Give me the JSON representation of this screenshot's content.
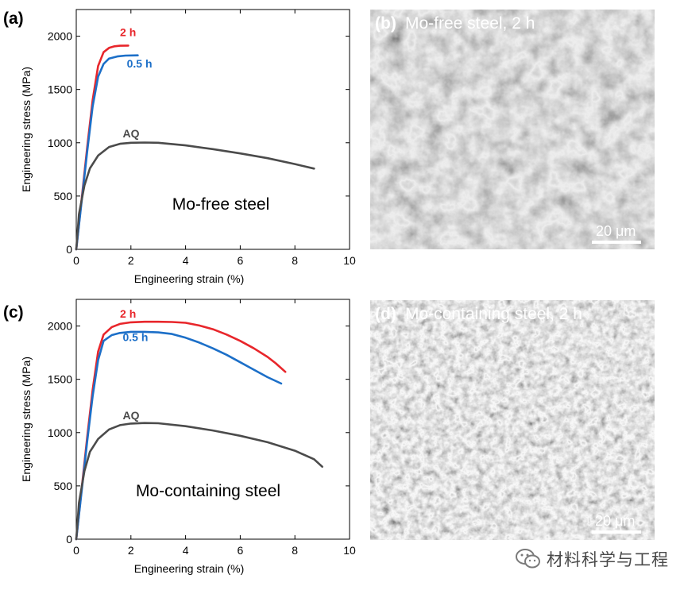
{
  "figure": {
    "panels": {
      "a": {
        "letter": "(a)"
      },
      "b": {
        "letter": "(b)",
        "caption": "Mo-free steel, 2 h",
        "scale_bar": "20 μm"
      },
      "c": {
        "letter": "(c)"
      },
      "d": {
        "letter": "(d)",
        "caption": "Mo-containing steel, 2 h",
        "scale_bar": "20 μm"
      }
    },
    "watermark": {
      "text": "材料科学与工程",
      "icon": "wechat-logo-icon"
    }
  },
  "colors": {
    "two_h": "#e8262b",
    "half_h": "#1c6fc8",
    "aq": "#4b4b4b",
    "sem_dark": "#3c3c3c"
  },
  "chart_data": [
    {
      "id": "a",
      "type": "line",
      "annotation": "Mo-free steel",
      "xlabel": "Engineering strain (%)",
      "ylabel": "Engineering stress (MPa)",
      "xlim": [
        0,
        10
      ],
      "ylim": [
        0,
        2250
      ],
      "xticks": [
        0,
        2,
        4,
        6,
        8,
        10
      ],
      "yticks": [
        0,
        500,
        1000,
        1500,
        2000
      ],
      "series": [
        {
          "name": "2 h",
          "color": "#e8262b",
          "x": [
            0,
            0.2,
            0.4,
            0.6,
            0.8,
            1.0,
            1.2,
            1.4,
            1.6,
            1.9
          ],
          "y": [
            0,
            480,
            960,
            1400,
            1720,
            1850,
            1890,
            1905,
            1910,
            1912
          ]
        },
        {
          "name": "0.5 h",
          "color": "#1c6fc8",
          "x": [
            0,
            0.2,
            0.4,
            0.6,
            0.8,
            1.0,
            1.2,
            1.5,
            1.8,
            2.25
          ],
          "y": [
            0,
            460,
            920,
            1340,
            1620,
            1740,
            1790,
            1810,
            1818,
            1820
          ]
        },
        {
          "name": "AQ",
          "color": "#4b4b4b",
          "x": [
            0,
            0.1,
            0.3,
            0.5,
            0.8,
            1.2,
            1.6,
            2.0,
            2.5,
            3.0,
            4.0,
            5.0,
            6.0,
            7.0,
            8.0,
            8.7
          ],
          "y": [
            0,
            330,
            600,
            760,
            880,
            960,
            990,
            1000,
            1002,
            1000,
            975,
            940,
            900,
            855,
            800,
            758
          ]
        }
      ],
      "series_label_pos": {
        "2 h": [
          1.6,
          2000
        ],
        "0.5 h": [
          1.85,
          1705
        ],
        "AQ": [
          1.7,
          1050
        ]
      }
    },
    {
      "id": "c",
      "type": "line",
      "annotation": "Mo-containing steel",
      "xlabel": "Engineering strain (%)",
      "ylabel": "Engineering stress (MPa)",
      "xlim": [
        0,
        10
      ],
      "ylim": [
        0,
        2250
      ],
      "xticks": [
        0,
        2,
        4,
        6,
        8,
        10
      ],
      "yticks": [
        0,
        500,
        1000,
        1500,
        2000
      ],
      "series": [
        {
          "name": "2 h",
          "color": "#e8262b",
          "x": [
            0,
            0.2,
            0.4,
            0.6,
            0.8,
            1.0,
            1.3,
            1.6,
            2.0,
            2.5,
            3.0,
            3.5,
            4.0,
            4.5,
            5.0,
            5.5,
            6.0,
            6.5,
            7.0,
            7.3,
            7.65
          ],
          "y": [
            0,
            480,
            960,
            1400,
            1760,
            1920,
            1990,
            2020,
            2035,
            2040,
            2040,
            2038,
            2030,
            2005,
            1970,
            1920,
            1860,
            1790,
            1710,
            1650,
            1570
          ]
        },
        {
          "name": "0.5 h",
          "color": "#1c6fc8",
          "x": [
            0,
            0.2,
            0.4,
            0.6,
            0.8,
            1.0,
            1.3,
            1.6,
            2.0,
            2.5,
            3.0,
            3.5,
            4.0,
            4.5,
            5.0,
            5.5,
            6.0,
            6.5,
            7.0,
            7.5
          ],
          "y": [
            0,
            460,
            920,
            1340,
            1680,
            1860,
            1915,
            1935,
            1945,
            1945,
            1940,
            1925,
            1890,
            1845,
            1790,
            1730,
            1660,
            1590,
            1520,
            1460
          ]
        },
        {
          "name": "AQ",
          "color": "#4b4b4b",
          "x": [
            0,
            0.1,
            0.3,
            0.5,
            0.8,
            1.2,
            1.6,
            2.0,
            2.5,
            3.0,
            4.0,
            5.0,
            6.0,
            7.0,
            8.0,
            8.7,
            9.0
          ],
          "y": [
            0,
            340,
            640,
            820,
            940,
            1030,
            1070,
            1085,
            1090,
            1088,
            1060,
            1020,
            970,
            910,
            830,
            750,
            680
          ]
        }
      ],
      "series_label_pos": {
        "2 h": [
          1.6,
          2080
        ],
        "0.5 h": [
          1.7,
          1860
        ],
        "AQ": [
          1.7,
          1125
        ]
      }
    }
  ]
}
